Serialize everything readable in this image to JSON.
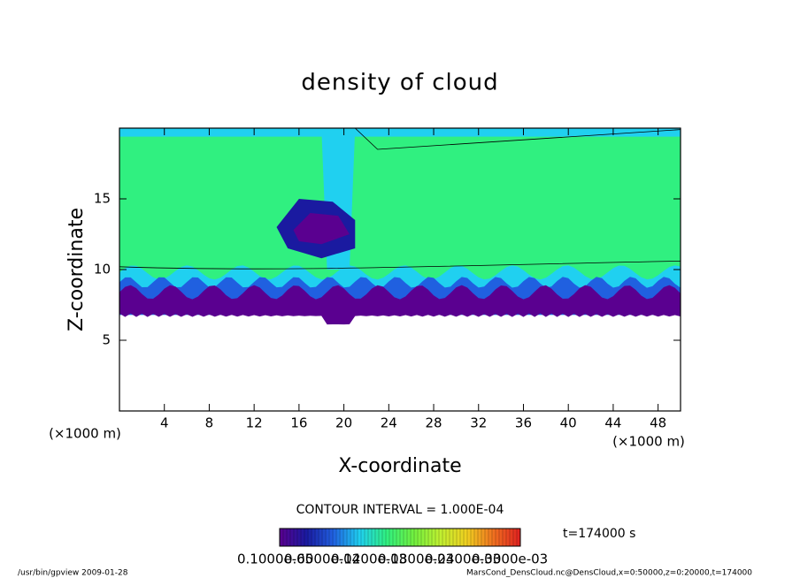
{
  "chart_data": {
    "type": "contour",
    "title": "density of cloud",
    "x_label": "X-coordinate",
    "y_label": "Z-coordinate",
    "x_unit": "(×1000 m)",
    "y_unit": "(×1000 m)",
    "xlim": [
      0,
      50
    ],
    "xticks": [
      4,
      8,
      12,
      16,
      20,
      24,
      28,
      32,
      36,
      40,
      44,
      48
    ],
    "ylim": [
      0,
      20
    ],
    "yticks": [
      5,
      10,
      15
    ],
    "contour_note": "CONTOUR INTERVAL = 1.000E-04",
    "time_note": "t=174000 s",
    "colorbar_labels": [
      "0.1000e-05",
      "0.6000e-04",
      "0.1200e-03",
      "0.1800e-03",
      "0.2400e-03",
      "0.3000e-03"
    ],
    "colormap": [
      "#5a0090",
      "#1a1aa0",
      "#2060e0",
      "#20d0f0",
      "#30f080",
      "#70f040",
      "#c0f030",
      "#f0d020",
      "#f07020",
      "#e02020"
    ],
    "footer_left": "/usr/bin/gpview  2009-01-28",
    "footer_right": "MarsCond_DensCloud.nc@DensCloud,x=0:50000,z=0:20000,t=174000"
  }
}
